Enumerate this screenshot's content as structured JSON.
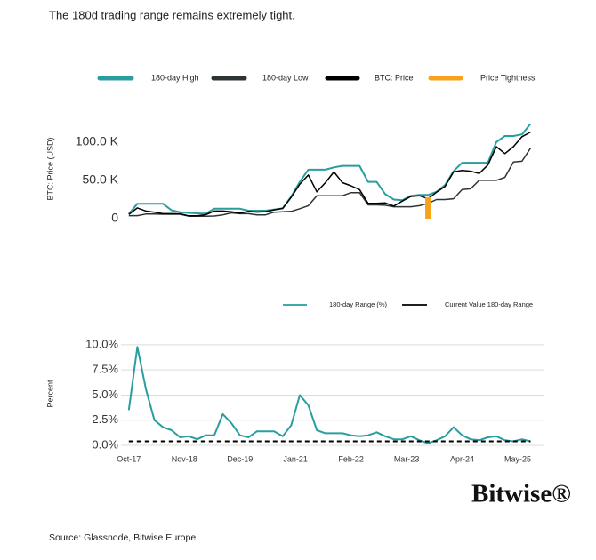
{
  "title": "The 180d trading range remains extremely tight.",
  "source": "Source: Glassnode, Bitwise Europe",
  "logo": "Bitwise®",
  "chart_data": [
    {
      "type": "line",
      "ylabel": "BTC: Price (USD)",
      "x": [
        "2017-10",
        "2017-12",
        "2018-02",
        "2018-04",
        "2018-06",
        "2018-08",
        "2018-10",
        "2018-12",
        "2019-02",
        "2019-04",
        "2019-06",
        "2019-08",
        "2019-10",
        "2019-12",
        "2020-02",
        "2020-04",
        "2020-06",
        "2020-08",
        "2020-10",
        "2020-12",
        "2021-02",
        "2021-04",
        "2021-06",
        "2021-08",
        "2021-10",
        "2021-12",
        "2022-02",
        "2022-04",
        "2022-06",
        "2022-08",
        "2022-10",
        "2022-12",
        "2023-02",
        "2023-04",
        "2023-06",
        "2023-08",
        "2023-10",
        "2023-12",
        "2024-02",
        "2024-04",
        "2024-06",
        "2024-08",
        "2024-10",
        "2024-12",
        "2025-02",
        "2025-04",
        "2025-06",
        "2025-08"
      ],
      "xlim": [
        "2017-09",
        "2025-10"
      ],
      "ylim": [
        0,
        130000
      ],
      "yticks": [
        0,
        {
          "value": 50000,
          "label": "50.0 K"
        },
        {
          "value": 100000,
          "label": "100.0 K"
        }
      ],
      "grid": false,
      "series": [
        {
          "name": "180-day High",
          "color": "#2a9d9f",
          "values": [
            6000,
            19500,
            19500,
            19500,
            19500,
            11000,
            8500,
            7500,
            7000,
            6500,
            13000,
            13000,
            13000,
            13000,
            10500,
            10500,
            10500,
            12000,
            13500,
            29000,
            48000,
            64000,
            64000,
            64000,
            67000,
            69000,
            69000,
            69000,
            48000,
            48000,
            32000,
            25000,
            24000,
            30000,
            31000,
            31000,
            35000,
            44000,
            62000,
            73000,
            73000,
            73000,
            73000,
            100000,
            108000,
            108000,
            110000,
            124000
          ]
        },
        {
          "name": "180-day Low",
          "color": "#2d3436",
          "values": [
            4000,
            4000,
            6000,
            6000,
            5800,
            5800,
            5800,
            3200,
            3200,
            3200,
            3500,
            5000,
            7500,
            6500,
            6500,
            5000,
            5000,
            8500,
            9000,
            9500,
            13000,
            17000,
            30000,
            30000,
            30000,
            30000,
            34000,
            34000,
            18000,
            18000,
            17500,
            15500,
            15500,
            15500,
            17000,
            20000,
            25000,
            25000,
            26000,
            38000,
            39000,
            50000,
            50000,
            50000,
            54000,
            74000,
            75000,
            92000
          ]
        },
        {
          "name": "BTC: Price",
          "color": "#000000",
          "values": [
            5500,
            14000,
            10000,
            8500,
            6500,
            6500,
            6400,
            3700,
            3800,
            5200,
            10000,
            10000,
            9000,
            7200,
            9500,
            8600,
            9200,
            11500,
            13500,
            28000,
            45000,
            57000,
            35000,
            47000,
            61000,
            47000,
            43000,
            38000,
            20000,
            20000,
            20500,
            16500,
            23000,
            29000,
            30000,
            26000,
            34500,
            42000,
            61000,
            63000,
            62000,
            59000,
            70000,
            94000,
            85000,
            94000,
            107000,
            113000
          ]
        },
        {
          "name": "Price Tightness",
          "color": "#f7a21b",
          "style": "bar",
          "values": [
            null,
            null,
            null,
            null,
            null,
            null,
            null,
            null,
            null,
            null,
            null,
            null,
            null,
            null,
            null,
            null,
            null,
            null,
            null,
            null,
            null,
            null,
            null,
            null,
            null,
            null,
            null,
            null,
            null,
            null,
            null,
            null,
            null,
            null,
            null,
            28000,
            null,
            null,
            null,
            null,
            null,
            null,
            null,
            null,
            null,
            null,
            null,
            null
          ]
        }
      ]
    },
    {
      "type": "line",
      "ylabel": "Percent",
      "x": [
        "2017-10",
        "2017-12",
        "2018-02",
        "2018-04",
        "2018-06",
        "2018-08",
        "2018-10",
        "2018-12",
        "2019-02",
        "2019-04",
        "2019-06",
        "2019-08",
        "2019-10",
        "2019-12",
        "2020-02",
        "2020-04",
        "2020-06",
        "2020-08",
        "2020-10",
        "2020-12",
        "2021-02",
        "2021-04",
        "2021-06",
        "2021-08",
        "2021-10",
        "2021-12",
        "2022-02",
        "2022-04",
        "2022-06",
        "2022-08",
        "2022-10",
        "2022-12",
        "2023-02",
        "2023-04",
        "2023-06",
        "2023-08",
        "2023-10",
        "2023-12",
        "2024-02",
        "2024-04",
        "2024-06",
        "2024-08",
        "2024-10",
        "2024-12",
        "2025-02",
        "2025-04",
        "2025-06",
        "2025-08"
      ],
      "xlim": [
        "2017-09",
        "2025-10"
      ],
      "xticks": [
        {
          "value": "2017-10",
          "label": "Oct-17"
        },
        {
          "value": "2018-11",
          "label": "Nov-18"
        },
        {
          "value": "2019-12",
          "label": "Dec-19"
        },
        {
          "value": "2021-01",
          "label": "Jan-21"
        },
        {
          "value": "2022-02",
          "label": "Feb-22"
        },
        {
          "value": "2023-03",
          "label": "Mar-23"
        },
        {
          "value": "2024-04",
          "label": "Apr-24"
        },
        {
          "value": "2025-05",
          "label": "May-25"
        }
      ],
      "ylim": [
        0,
        10.7
      ],
      "yticks": [
        {
          "value": 0,
          "label": "0.0%"
        },
        {
          "value": 2.5,
          "label": "2.5%"
        },
        {
          "value": 5,
          "label": "5.0%"
        },
        {
          "value": 7.5,
          "label": "7.5%"
        },
        {
          "value": 10,
          "label": "10.0%"
        }
      ],
      "grid": true,
      "series": [
        {
          "name": "180-day Range (%)",
          "color": "#2a9d9f",
          "values": [
            3.5,
            9.8,
            5.6,
            2.5,
            1.8,
            1.5,
            0.8,
            0.9,
            0.6,
            1.0,
            1.0,
            3.1,
            2.2,
            1.0,
            0.8,
            1.4,
            1.4,
            1.4,
            0.9,
            2.0,
            5.0,
            4.0,
            1.5,
            1.2,
            1.2,
            1.2,
            1.0,
            0.9,
            1.0,
            1.3,
            0.9,
            0.6,
            0.6,
            0.9,
            0.5,
            0.2,
            0.5,
            0.9,
            1.8,
            1.0,
            0.6,
            0.5,
            0.8,
            0.9,
            0.5,
            0.4,
            0.6,
            0.4
          ]
        },
        {
          "name": "Current Value 180-day Range",
          "color": "#000000",
          "style": "dashed",
          "value": 0.4
        }
      ]
    }
  ]
}
